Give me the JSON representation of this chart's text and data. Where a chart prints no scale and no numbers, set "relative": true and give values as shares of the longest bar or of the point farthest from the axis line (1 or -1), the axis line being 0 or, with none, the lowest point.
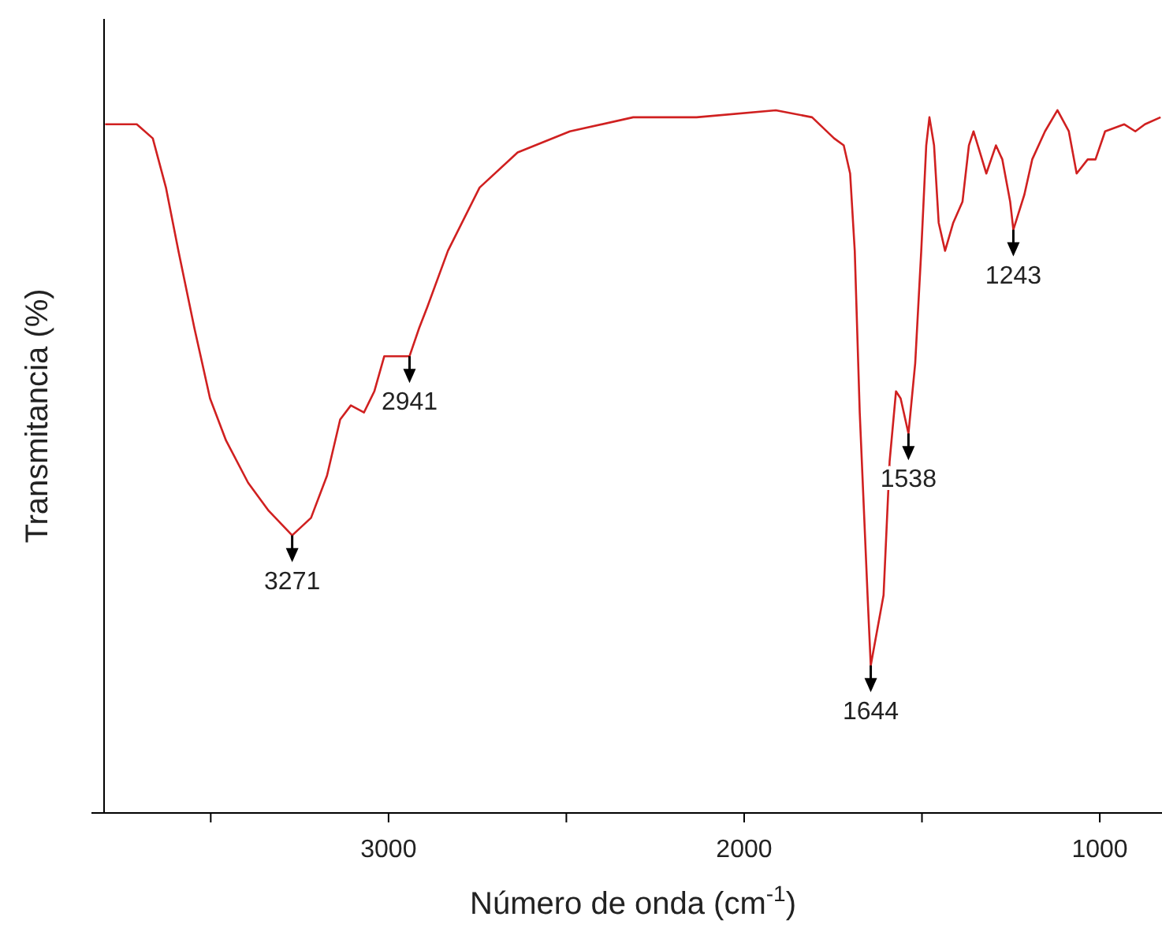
{
  "chart_data": {
    "type": "line",
    "relative": true,
    "xlabel": "Número de onda (cm$^{-1}$)",
    "ylabel": "Transmitancia (%)",
    "xlim": [
      3800,
      825
    ],
    "xticks": [
      {
        "value": 3500,
        "label": null
      },
      3000,
      {
        "value": 2500,
        "label": null
      },
      2000,
      {
        "value": 1500,
        "label": null
      },
      1000
    ],
    "grid": false,
    "marker": "none",
    "line_style": "solid",
    "series": [
      {
        "color": "#d02020",
        "x": [
          3797,
          3708,
          3663,
          3626,
          3591,
          3546,
          3502,
          3457,
          3395,
          3337,
          3271,
          3218,
          3173,
          3136,
          3106,
          3069,
          3040,
          3012,
          2941,
          2914,
          2891,
          2833,
          2744,
          2637,
          2490,
          2312,
          2147,
          2134,
          1911,
          1809,
          1747,
          1720,
          1702,
          1689,
          1675,
          1653,
          1644,
          1608,
          1591,
          1573,
          1560,
          1538,
          1519,
          1502,
          1488,
          1479,
          1466,
          1453,
          1435,
          1412,
          1386,
          1368,
          1355,
          1337,
          1319,
          1292,
          1274,
          1252,
          1243,
          1212,
          1190,
          1154,
          1119,
          1087,
          1065,
          1034,
          1012,
          985,
          931,
          900,
          873,
          829
        ],
        "values": [
          0.98,
          0.98,
          0.96,
          0.89,
          0.8,
          0.69,
          0.59,
          0.53,
          0.47,
          0.43,
          0.395,
          0.42,
          0.48,
          0.56,
          0.58,
          0.57,
          0.6,
          0.65,
          0.65,
          0.69,
          0.72,
          0.8,
          0.89,
          0.94,
          0.97,
          0.99,
          0.99,
          0.99,
          1.0,
          0.99,
          0.96,
          0.95,
          0.91,
          0.8,
          0.57,
          0.31,
          0.21,
          0.31,
          0.5,
          0.6,
          0.59,
          0.54,
          0.64,
          0.8,
          0.95,
          0.99,
          0.95,
          0.84,
          0.8,
          0.84,
          0.87,
          0.95,
          0.97,
          0.94,
          0.91,
          0.95,
          0.93,
          0.87,
          0.83,
          0.88,
          0.93,
          0.97,
          1.0,
          0.97,
          0.91,
          0.93,
          0.93,
          0.97,
          0.98,
          0.97,
          0.98,
          0.99
        ]
      }
    ],
    "annotations": [
      {
        "text": "3271",
        "x": 3271,
        "y": 0.395
      },
      {
        "text": "2941",
        "x": 2941,
        "y": 0.65
      },
      {
        "text": "1644",
        "x": 1644,
        "y": 0.21
      },
      {
        "text": "1538",
        "x": 1538,
        "y": 0.54
      },
      {
        "text": "1243",
        "x": 1243,
        "y": 0.83
      }
    ]
  }
}
